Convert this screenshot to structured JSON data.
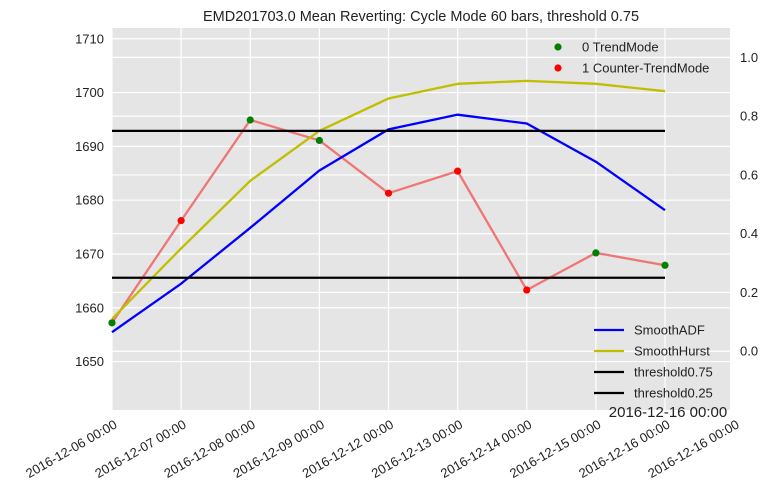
{
  "chart_data": {
    "type": "line",
    "title": "EMD201703.0 Mean Reverting: Cycle Mode 60 bars, threshold 0.75",
    "x_tick_labels": [
      "2016-12-06 00:00",
      "2016-12-07 00:00",
      "2016-12-08 00:00",
      "2016-12-09 00:00",
      "2016-12-12 00:00",
      "2016-12-13 00:00",
      "2016-12-14 00:00",
      "2016-12-15 00:00",
      "2016-12-16 00:00",
      "2016-12-16 00:00"
    ],
    "x_corner_label": "2016-12-16 00:00",
    "y_left": {
      "ylim": [
        1641,
        1712
      ],
      "ticks": [
        1650,
        1660,
        1670,
        1680,
        1690,
        1700,
        1710
      ]
    },
    "y_right": {
      "ylim": [
        -0.2,
        1.1
      ],
      "ticks": [
        0.0,
        0.2,
        0.4,
        0.6,
        0.8,
        1.0
      ]
    },
    "price_line": {
      "axis": "left",
      "color": "#f07575",
      "values": [
        1657.2,
        1676.2,
        1694.9,
        1691.1,
        1681.3,
        1685.4,
        1663.3,
        1670.2,
        1667.9
      ]
    },
    "modes": [
      0,
      1,
      0,
      0,
      1,
      1,
      1,
      0,
      0
    ],
    "series": [
      {
        "name": "SmoothADF",
        "axis": "right",
        "color": "#0000ff",
        "values": [
          0.065,
          0.23,
          0.42,
          0.615,
          0.755,
          0.805,
          0.775,
          0.645,
          0.48
        ]
      },
      {
        "name": "SmoothHurst",
        "axis": "right",
        "color": "#bfbf00",
        "values": [
          0.11,
          0.35,
          0.58,
          0.75,
          0.86,
          0.91,
          0.92,
          0.91,
          0.885
        ]
      },
      {
        "name": "threshold0.75",
        "axis": "right",
        "color": "#000000",
        "values": [
          0.75,
          0.75,
          0.75,
          0.75,
          0.75,
          0.75,
          0.75,
          0.75,
          0.75
        ]
      },
      {
        "name": "threshold0.25",
        "axis": "right",
        "color": "#000000",
        "values": [
          0.25,
          0.25,
          0.25,
          0.25,
          0.25,
          0.25,
          0.25,
          0.25,
          0.25
        ]
      }
    ],
    "mode_legend": [
      {
        "label": "0 TrendMode",
        "color": "#008000"
      },
      {
        "label": "1 Counter-TrendMode",
        "color": "#ff0000"
      }
    ],
    "grid": true,
    "legend_placement": [
      "top-right",
      "bottom-right"
    ]
  }
}
